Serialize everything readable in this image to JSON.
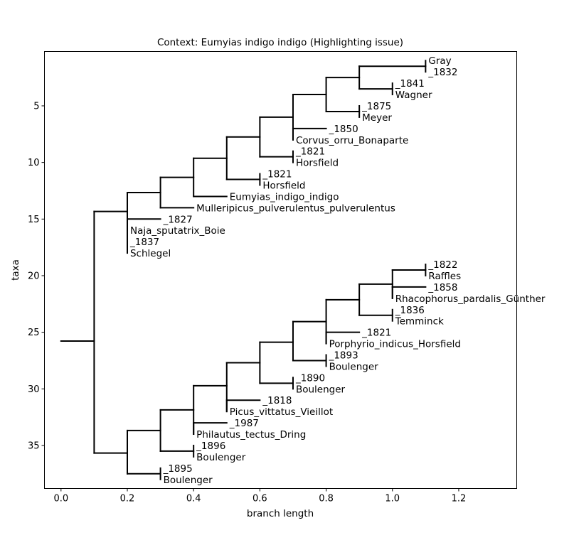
{
  "chart_data": {
    "type": "tree",
    "title": "Context: Eumyias indigo indigo (Highlighting issue)",
    "xlabel": "branch length",
    "ylabel": "taxa",
    "xlim": [
      -0.05,
      1.375
    ],
    "ylim": [
      38.8,
      0.2
    ],
    "xticks": [
      0.0,
      0.2,
      0.4,
      0.6,
      0.8,
      1.0,
      1.2
    ],
    "xtick_labels": [
      "0.0",
      "0.2",
      "0.4",
      "0.6",
      "0.8",
      "1.0",
      "1.2"
    ],
    "yticks": [
      5,
      10,
      15,
      20,
      25,
      30,
      35
    ],
    "ytick_labels": [
      "5",
      "10",
      "15",
      "20",
      "25",
      "30",
      "35"
    ],
    "grid": false,
    "line_color": "#000000",
    "leaves": [
      {
        "name": "Gray",
        "x": 1.1,
        "y": 1
      },
      {
        "name": "_1832",
        "x": 1.1,
        "y": 2
      },
      {
        "name": "_1841",
        "x": 1.0,
        "y": 3
      },
      {
        "name": "Wagner",
        "x": 1.0,
        "y": 4
      },
      {
        "name": "_1875",
        "x": 0.9,
        "y": 5
      },
      {
        "name": "Meyer",
        "x": 0.9,
        "y": 6
      },
      {
        "name": "_1850",
        "x": 0.8,
        "y": 7
      },
      {
        "name": "Corvus_orru_Bonaparte",
        "x": 0.7,
        "y": 8
      },
      {
        "name": "_1821",
        "x": 0.7,
        "y": 9
      },
      {
        "name": "Horsfield",
        "x": 0.7,
        "y": 10
      },
      {
        "name": "_1821",
        "x": 0.6,
        "y": 11
      },
      {
        "name": "Horsfield",
        "x": 0.6,
        "y": 12
      },
      {
        "name": "Eumyias_indigo_indigo",
        "x": 0.5,
        "y": 13
      },
      {
        "name": "Mulleripicus_pulverulentus_pulverulentus",
        "x": 0.4,
        "y": 14
      },
      {
        "name": "_1827",
        "x": 0.3,
        "y": 15
      },
      {
        "name": "Naja_sputatrix_Boie",
        "x": 0.2,
        "y": 16
      },
      {
        "name": "_1837",
        "x": 0.2,
        "y": 17
      },
      {
        "name": "Schlegel",
        "x": 0.2,
        "y": 18
      },
      {
        "name": "_1822",
        "x": 1.1,
        "y": 19
      },
      {
        "name": "Raffles",
        "x": 1.1,
        "y": 20
      },
      {
        "name": "_1858",
        "x": 1.1,
        "y": 21
      },
      {
        "name": "Rhacophorus_pardalis_Günther",
        "x": 1.0,
        "y": 22
      },
      {
        "name": "_1836",
        "x": 1.0,
        "y": 23
      },
      {
        "name": "Temminck",
        "x": 1.0,
        "y": 24
      },
      {
        "name": "_1821",
        "x": 0.9,
        "y": 25
      },
      {
        "name": "Porphyrio_indicus_Horsfield",
        "x": 0.8,
        "y": 26
      },
      {
        "name": "_1893",
        "x": 0.8,
        "y": 27
      },
      {
        "name": "Boulenger",
        "x": 0.8,
        "y": 28
      },
      {
        "name": "_1890",
        "x": 0.7,
        "y": 29
      },
      {
        "name": "Boulenger",
        "x": 0.7,
        "y": 30
      },
      {
        "name": "_1818",
        "x": 0.6,
        "y": 31
      },
      {
        "name": "Picus_vittatus_Vieillot",
        "x": 0.5,
        "y": 32
      },
      {
        "name": "_1987",
        "x": 0.5,
        "y": 33
      },
      {
        "name": "Philautus_tectus_Dring",
        "x": 0.4,
        "y": 34
      },
      {
        "name": "_1896",
        "x": 0.4,
        "y": 35
      },
      {
        "name": "Boulenger",
        "x": 0.4,
        "y": 36
      },
      {
        "name": "_1895",
        "x": 0.3,
        "y": 37
      },
      {
        "name": "Boulenger",
        "x": 0.3,
        "y": 38
      }
    ],
    "edges": [
      {
        "x0": 0.0,
        "x1": 0.1,
        "y": 25.78
      },
      {
        "x": 0.1,
        "y0": 14.33,
        "y1": 35.67
      },
      {
        "x0": 0.1,
        "x1": 0.2,
        "y": 14.33
      },
      {
        "x0": 0.1,
        "x1": 0.2,
        "y": 35.67
      },
      {
        "x": 0.2,
        "y0": 12.66,
        "y1": 17.5
      },
      {
        "x0": 0.2,
        "x1": 0.3,
        "y": 12.66
      },
      {
        "x0": 0.2,
        "x1": 0.3,
        "y": 15
      },
      {
        "x": 0.2,
        "y0": 15,
        "y1": 16
      },
      {
        "x0": 0.2,
        "x1": 0.2,
        "y": 17.5
      },
      {
        "x": 0.2,
        "y0": 17,
        "y1": 18
      },
      {
        "x": 0.3,
        "y0": 11.32,
        "y1": 14
      },
      {
        "x0": 0.3,
        "x1": 0.4,
        "y": 11.32
      },
      {
        "x0": 0.3,
        "x1": 0.4,
        "y": 14
      },
      {
        "x": 0.4,
        "y0": 9.63,
        "y1": 13
      },
      {
        "x0": 0.4,
        "x1": 0.5,
        "y": 9.63
      },
      {
        "x0": 0.4,
        "x1": 0.5,
        "y": 13
      },
      {
        "x": 0.5,
        "y0": 7.75,
        "y1": 11.5
      },
      {
        "x0": 0.5,
        "x1": 0.6,
        "y": 7.75
      },
      {
        "x0": 0.5,
        "x1": 0.6,
        "y": 11.5
      },
      {
        "x": 0.6,
        "y0": 11,
        "y1": 12
      },
      {
        "x": 0.6,
        "y0": 6.0,
        "y1": 9.5
      },
      {
        "x0": 0.6,
        "x1": 0.7,
        "y": 6.0
      },
      {
        "x0": 0.6,
        "x1": 0.7,
        "y": 9.5
      },
      {
        "x": 0.7,
        "y0": 9,
        "y1": 10
      },
      {
        "x": 0.7,
        "y0": 4.0,
        "y1": 8.0
      },
      {
        "x0": 0.7,
        "x1": 0.8,
        "y": 4.0
      },
      {
        "x0": 0.7,
        "x1": 0.8,
        "y": 7.0
      },
      {
        "x": 0.7,
        "y0": 7,
        "y1": 8
      },
      {
        "x": 0.8,
        "y0": 2.5,
        "y1": 5.5
      },
      {
        "x0": 0.8,
        "x1": 0.9,
        "y": 2.5
      },
      {
        "x0": 0.8,
        "x1": 0.9,
        "y": 5.5
      },
      {
        "x": 0.9,
        "y0": 5,
        "y1": 6
      },
      {
        "x": 0.9,
        "y0": 1.5,
        "y1": 3.5
      },
      {
        "x0": 0.9,
        "x1": 1.1,
        "y": 1.5
      },
      {
        "x": 1.1,
        "y0": 1,
        "y1": 2
      },
      {
        "x0": 0.9,
        "x1": 1.0,
        "y": 3.5
      },
      {
        "x": 1.0,
        "y0": 3,
        "y1": 4
      },
      {
        "x": 0.2,
        "y0": 33.68,
        "y1": 37.5
      },
      {
        "x0": 0.2,
        "x1": 0.3,
        "y": 33.68
      },
      {
        "x0": 0.2,
        "x1": 0.3,
        "y": 37.5
      },
      {
        "x": 0.3,
        "y0": 37,
        "y1": 38
      },
      {
        "x": 0.3,
        "y0": 31.86,
        "y1": 35.5
      },
      {
        "x0": 0.3,
        "x1": 0.4,
        "y": 31.86
      },
      {
        "x0": 0.3,
        "x1": 0.4,
        "y": 35.5
      },
      {
        "x": 0.4,
        "y0": 35,
        "y1": 36
      },
      {
        "x": 0.4,
        "y0": 29.72,
        "y1": 34
      },
      {
        "x0": 0.4,
        "x1": 0.5,
        "y": 29.72
      },
      {
        "x0": 0.4,
        "x1": 0.5,
        "y": 33
      },
      {
        "x": 0.4,
        "y0": 33,
        "y1": 34
      },
      {
        "x": 0.5,
        "y0": 27.69,
        "y1": 32
      },
      {
        "x0": 0.5,
        "x1": 0.6,
        "y": 27.69
      },
      {
        "x0": 0.5,
        "x1": 0.6,
        "y": 31
      },
      {
        "x": 0.5,
        "y0": 31,
        "y1": 32
      },
      {
        "x": 0.6,
        "y0": 25.88,
        "y1": 29.5
      },
      {
        "x0": 0.6,
        "x1": 0.7,
        "y": 25.88
      },
      {
        "x0": 0.6,
        "x1": 0.7,
        "y": 29.5
      },
      {
        "x": 0.7,
        "y0": 29,
        "y1": 30
      },
      {
        "x": 0.7,
        "y0": 24.06,
        "y1": 27.5
      },
      {
        "x0": 0.7,
        "x1": 0.8,
        "y": 24.06
      },
      {
        "x0": 0.7,
        "x1": 0.8,
        "y": 27.5
      },
      {
        "x": 0.8,
        "y0": 27,
        "y1": 28
      },
      {
        "x": 0.8,
        "y0": 22.13,
        "y1": 26
      },
      {
        "x0": 0.8,
        "x1": 0.9,
        "y": 22.13
      },
      {
        "x0": 0.8,
        "x1": 0.9,
        "y": 25
      },
      {
        "x": 0.8,
        "y0": 25,
        "y1": 26
      },
      {
        "x": 0.9,
        "y0": 20.75,
        "y1": 23.5
      },
      {
        "x0": 0.9,
        "x1": 1.0,
        "y": 20.75
      },
      {
        "x0": 0.9,
        "x1": 1.0,
        "y": 23.5
      },
      {
        "x": 1.0,
        "y0": 23,
        "y1": 24
      },
      {
        "x": 1.0,
        "y0": 19.5,
        "y1": 22
      },
      {
        "x0": 1.0,
        "x1": 1.1,
        "y": 19.5
      },
      {
        "x": 1.1,
        "y0": 19,
        "y1": 20
      },
      {
        "x0": 1.0,
        "x1": 1.1,
        "y": 21
      },
      {
        "x": 1.0,
        "y0": 21,
        "y1": 22
      }
    ]
  }
}
